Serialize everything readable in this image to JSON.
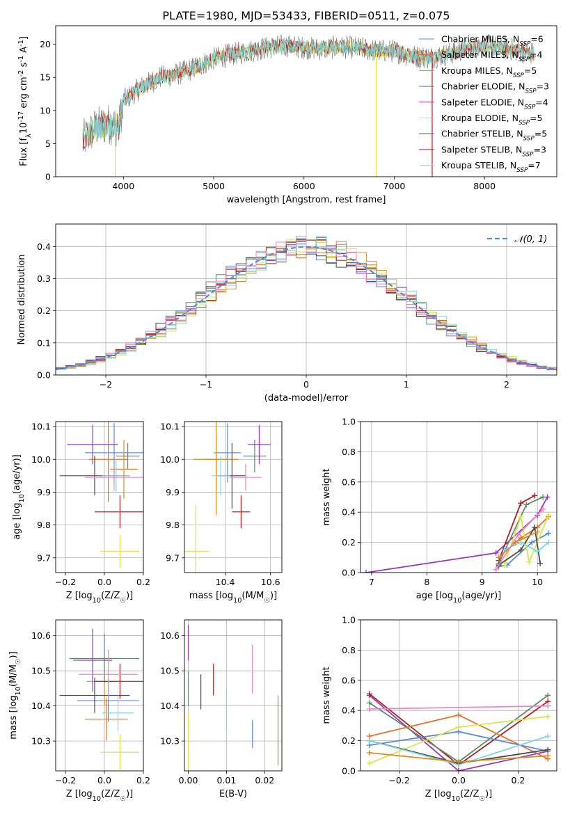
{
  "figure": {
    "title": "PLATE=1980, MJD=53433, FIBERID=0511, z=0.075"
  },
  "colors": {
    "Chabrier MILES": "#5b8bd8",
    "Salpeter MILES": "#e5712a",
    "Kroupa MILES": "#d98c1e",
    "Chabrier ELODIE": "#5e8a6a",
    "Salpeter ELODIE": "#9a35b8",
    "Kroupa ELODIE": "#d6e64a",
    "Chabrier STELIB": "#4a4a4a",
    "Salpeter STELIB": "#b21d1d",
    "Kroupa STELIB": "#7fd6dc",
    "spectrum": "#808080",
    "extra_pink": "#e688c2"
  },
  "chart_data": [
    {
      "id": "spectrum",
      "type": "line",
      "title": "PLATE=1980, MJD=53433, FIBERID=0511, z=0.075",
      "xlabel": "wavelength [Angstrom, rest frame]",
      "ylabel": "Flux [f$_\\lambda$10$^{-17}$ erg cm$^{-2}$ s$^{-1}$ A$^{-1}$]",
      "xlim": [
        3250,
        8800
      ],
      "ylim": [
        0,
        22.8
      ],
      "xticks": [
        4000,
        5000,
        6000,
        7000,
        8000
      ],
      "yticks": [
        0,
        5,
        10,
        15,
        20
      ],
      "legend": [
        {
          "label": "Chabrier MILES, N",
          "sub": "SSP",
          "value": "=6",
          "color": "#5b8bd8"
        },
        {
          "label": "Salpeter MILES, N",
          "sub": "SSP",
          "value": "=4",
          "color": "#e5712a"
        },
        {
          "label": "Kroupa MILES, N",
          "sub": "SSP",
          "value": "=5",
          "color": "#d98c1e"
        },
        {
          "label": "Chabrier ELODIE, N",
          "sub": "SSP",
          "value": "=3",
          "color": "#5e8a6a"
        },
        {
          "label": "Salpeter ELODIE, N",
          "sub": "SSP",
          "value": "=4",
          "color": "#9a35b8"
        },
        {
          "label": "Kroupa ELODIE, N",
          "sub": "SSP",
          "value": "=5",
          "color": "#d6e64a"
        },
        {
          "label": "Chabrier STELIB, N",
          "sub": "SSP",
          "value": "=5",
          "color": "#4a4a4a"
        },
        {
          "label": "Salpeter STELIB, N",
          "sub": "SSP",
          "value": "=3",
          "color": "#b21d1d"
        },
        {
          "label": "Kroupa STELIB, N",
          "sub": "SSP",
          "value": "=7",
          "color": "#7fd6dc"
        }
      ],
      "legend_placement": "right",
      "envelope": {
        "x": [
          3550,
          3700,
          3850,
          3950,
          4000,
          4200,
          4400,
          4600,
          4800,
          5000,
          5200,
          5400,
          5600,
          5800,
          6000,
          6200,
          6400,
          6600,
          6800,
          7000,
          7200,
          7400,
          7600,
          7800,
          8000,
          8200,
          8400,
          8550
        ],
        "y": [
          5.5,
          7.5,
          8.0,
          7.5,
          11.5,
          13.5,
          15.0,
          15.5,
          16.5,
          17.8,
          18.5,
          19.0,
          19.5,
          19.8,
          19.5,
          19.3,
          19.6,
          19.4,
          19.0,
          19.0,
          18.2,
          18.0,
          18.5,
          19.4,
          19.8,
          19.5,
          19.0,
          18.5
        ]
      },
      "dips": [
        {
          "x": 3910,
          "to": 0.0,
          "color": "#d6e64a"
        },
        {
          "x": 6800,
          "to": 0.0,
          "color": "#d6e64a"
        },
        {
          "x": 7420,
          "to": 0.0,
          "color": "#b21d1d"
        }
      ]
    },
    {
      "id": "residual_hist",
      "type": "line",
      "xlabel": "(data-model)/error",
      "ylabel": "Normed distribution",
      "xlim": [
        -2.5,
        2.5
      ],
      "ylim": [
        0,
        0.47
      ],
      "xticks": [
        -2,
        -1,
        0,
        1,
        2
      ],
      "yticks": [
        0.0,
        0.1,
        0.2,
        0.3,
        0.4
      ],
      "grid": true,
      "legend": [
        {
          "label": "𝒩(0, 1)",
          "style": "dashed",
          "color": "#5b8bd8"
        }
      ],
      "legend_placement": "top-right",
      "bin_width": 0.1
    },
    {
      "id": "age_vs_Z",
      "type": "scatter",
      "xlabel": "Z [log$_{10}$(Z/Z$_\\odot$)]",
      "ylabel": "age  [log$_{10}$(age/yr)]",
      "xlim": [
        -0.25,
        0.2
      ],
      "ylim": [
        9.655,
        10.115
      ],
      "xticks": [
        -0.2,
        0.0,
        0.2
      ],
      "yticks": [
        9.7,
        9.8,
        9.9,
        10.0,
        10.1
      ],
      "grid": true,
      "points": [
        {
          "series": "Chabrier MILES",
          "x": 0.05,
          "xerr": 0.15,
          "y": 10.02,
          "yerr": 0.09
        },
        {
          "series": "Salpeter MILES",
          "x": 0.02,
          "xerr": 0.1,
          "y": 10.0,
          "yerr": 0.13
        },
        {
          "series": "Kroupa MILES",
          "x": 0.1,
          "xerr": 0.07,
          "y": 9.97,
          "yerr": 0.09
        },
        {
          "series": "Chabrier ELODIE",
          "x": 0.12,
          "xerr": 0.06,
          "y": 10.01,
          "yerr": 0.04
        },
        {
          "series": "Salpeter ELODIE",
          "x": -0.06,
          "xerr": 0.13,
          "y": 10.045,
          "yerr": 0.06
        },
        {
          "series": "Kroupa ELODIE",
          "x": 0.08,
          "xerr": 0.1,
          "y": 9.72,
          "yerr": 0.05
        },
        {
          "series": "Chabrier STELIB",
          "x": -0.05,
          "xerr": 0.18,
          "y": 9.95,
          "yerr": 0.06
        },
        {
          "series": "Salpeter STELIB",
          "x": 0.08,
          "xerr": 0.13,
          "y": 9.84,
          "yerr": 0.05
        },
        {
          "series": "Kroupa STELIB",
          "x": 0.06,
          "xerr": 0.07,
          "y": 9.95,
          "yerr": 0.05
        },
        {
          "series": "extra_pink",
          "x": 0.05,
          "xerr": 0.15,
          "y": 9.945,
          "yerr": 0.04
        }
      ]
    },
    {
      "id": "age_vs_mass",
      "type": "scatter",
      "xlabel": "mass [log$_{10}$(M/M$_\\odot$)]",
      "ylabel": "",
      "xlim": [
        10.22,
        10.65
      ],
      "ylim": [
        9.655,
        10.115
      ],
      "xticks": [
        10.4,
        10.6
      ],
      "yticks": [
        9.7,
        9.8,
        9.9,
        10.0,
        10.1
      ],
      "grid": true,
      "points": [
        {
          "series": "Chabrier MILES",
          "x": 10.41,
          "xerr": 0.06,
          "y": 10.02,
          "yerr": 0.09
        },
        {
          "series": "Salpeter MILES",
          "x": 10.36,
          "xerr": 0.05,
          "y": 10.0,
          "yerr": 0.07
        },
        {
          "series": "Kroupa MILES",
          "x": 10.36,
          "xerr": 0.1,
          "y": 10.0,
          "yerr": 0.17
        },
        {
          "series": "Chabrier ELODIE",
          "x": 10.53,
          "xerr": 0.05,
          "y": 10.01,
          "yerr": 0.05
        },
        {
          "series": "Salpeter ELODIE",
          "x": 10.55,
          "xerr": 0.05,
          "y": 10.045,
          "yerr": 0.06
        },
        {
          "series": "Kroupa ELODIE",
          "x": 10.27,
          "xerr": 0.06,
          "y": 9.72,
          "yerr": 0.14
        },
        {
          "series": "Chabrier STELIB",
          "x": 10.43,
          "xerr": 0.06,
          "y": 9.95,
          "yerr": 0.1
        },
        {
          "series": "Salpeter STELIB",
          "x": 10.47,
          "xerr": 0.04,
          "y": 9.84,
          "yerr": 0.05
        },
        {
          "series": "Kroupa STELIB",
          "x": 10.38,
          "xerr": 0.04,
          "y": 9.95,
          "yerr": 0.06
        },
        {
          "series": "extra_pink",
          "x": 10.49,
          "xerr": 0.07,
          "y": 9.945,
          "yerr": 0.04
        }
      ]
    },
    {
      "id": "massweight_vs_age",
      "type": "line",
      "xlabel": "age  [log$_{10}$(age/yr)]",
      "ylabel": "mass weight",
      "xlim": [
        6.8,
        10.35
      ],
      "ylim": [
        0,
        1.0
      ],
      "xticks": [
        7,
        8,
        9,
        10
      ],
      "yticks": [
        0.0,
        0.2,
        0.4,
        0.6,
        0.8,
        1.0
      ],
      "grid": true,
      "series": [
        {
          "name": "Salpeter ELODIE",
          "x": [
            6.9,
            9.25,
            10.0,
            10.18
          ],
          "y": [
            0.0,
            0.13,
            0.38,
            0.5
          ]
        },
        {
          "name": "Salpeter STELIB",
          "x": [
            9.3,
            9.7,
            9.95
          ],
          "y": [
            0.08,
            0.46,
            0.51
          ]
        },
        {
          "name": "Chabrier ELODIE",
          "x": [
            9.3,
            9.8,
            10.1
          ],
          "y": [
            0.06,
            0.45,
            0.5
          ]
        },
        {
          "name": "Salpeter MILES",
          "x": [
            9.3,
            9.7,
            10.0,
            10.2
          ],
          "y": [
            0.1,
            0.23,
            0.3,
            0.37
          ]
        },
        {
          "name": "Chabrier MILES",
          "x": [
            9.3,
            9.45,
            9.9,
            10.2
          ],
          "y": [
            0.04,
            0.05,
            0.2,
            0.26
          ]
        },
        {
          "name": "Kroupa ELODIE",
          "x": [
            9.4,
            9.7,
            9.85,
            10.2
          ],
          "y": [
            0.05,
            0.37,
            0.07,
            0.38
          ]
        },
        {
          "name": "Chabrier STELIB",
          "x": [
            9.3,
            9.7,
            9.95,
            10.05
          ],
          "y": [
            0.05,
            0.15,
            0.3,
            0.06
          ]
        },
        {
          "name": "Kroupa STELIB",
          "x": [
            9.4,
            9.7,
            10.0,
            10.2
          ],
          "y": [
            0.15,
            0.2,
            0.14,
            0.2
          ]
        },
        {
          "name": "Kroupa MILES",
          "x": [
            9.3,
            9.6,
            10.0
          ],
          "y": [
            0.1,
            0.2,
            0.27
          ]
        },
        {
          "name": "extra_pink",
          "x": [
            9.25,
            9.65,
            10.1
          ],
          "y": [
            0.02,
            0.25,
            0.42
          ]
        }
      ]
    },
    {
      "id": "mass_vs_Z",
      "type": "scatter",
      "xlabel": "Z [log$_{10}$(Z/Z$_\\odot$)]",
      "ylabel": "mass [log$_{10}$(M/M$_\\odot$)]",
      "xlim": [
        -0.25,
        0.2
      ],
      "ylim": [
        10.215,
        10.645
      ],
      "xticks": [
        -0.2,
        0.0,
        0.2
      ],
      "yticks": [
        10.3,
        10.4,
        10.5,
        10.6
      ],
      "grid": true,
      "points": [
        {
          "series": "Chabrier MILES",
          "x": 0.02,
          "xerr": 0.16,
          "y": 10.415,
          "yerr": 0.06
        },
        {
          "series": "Salpeter MILES",
          "x": 0.01,
          "xerr": 0.11,
          "y": 10.362,
          "yerr": 0.06
        },
        {
          "series": "Kroupa MILES",
          "x": 0.0,
          "xerr": 0.09,
          "y": 10.47,
          "yerr": 0.07
        },
        {
          "series": "Chabrier ELODIE",
          "x": 0.0,
          "xerr": 0.18,
          "y": 10.535,
          "yerr": 0.07
        },
        {
          "series": "Salpeter ELODIE",
          "x": -0.06,
          "xerr": 0.1,
          "y": 10.53,
          "yerr": 0.09
        },
        {
          "series": "Kroupa ELODIE",
          "x": 0.08,
          "xerr": 0.1,
          "y": 10.268,
          "yerr": 0.05
        },
        {
          "series": "Chabrier STELIB",
          "x": -0.05,
          "xerr": 0.18,
          "y": 10.43,
          "yerr": 0.05
        },
        {
          "series": "Salpeter STELIB",
          "x": 0.08,
          "xerr": 0.13,
          "y": 10.47,
          "yerr": 0.05
        },
        {
          "series": "Kroupa STELIB",
          "x": 0.07,
          "xerr": 0.08,
          "y": 10.38,
          "yerr": 0.05
        },
        {
          "series": "extra_pink",
          "x": 0.02,
          "xerr": 0.15,
          "y": 10.49,
          "yerr": 0.07
        }
      ]
    },
    {
      "id": "mass_vs_ebv",
      "type": "scatter",
      "xlabel": "E(B-V)",
      "ylabel": "",
      "xlim": [
        -0.001,
        0.0245
      ],
      "ylim": [
        10.215,
        10.645
      ],
      "xticks": [
        0.0,
        0.01,
        0.02
      ],
      "yticks": [
        10.3,
        10.4,
        10.5,
        10.6
      ],
      "grid": true,
      "points": [
        {
          "series": "Chabrier MILES",
          "x": 0.0168,
          "y": 10.32,
          "yerr": 0.04
        },
        {
          "series": "Salpeter MILES",
          "x": 0.0235,
          "y": 10.33,
          "yerr": 0.1
        },
        {
          "series": "Kroupa ELODIE",
          "x": 0.0,
          "y": 10.3,
          "yerr": 0.08
        },
        {
          "series": "Salpeter ELODIE",
          "x": 0.0,
          "y": 10.58,
          "yerr": 0.05
        },
        {
          "series": "Chabrier ELODIE",
          "x": 0.0,
          "y": 10.45,
          "yerr": 0.05
        },
        {
          "series": "Chabrier STELIB",
          "x": 0.0033,
          "y": 10.44,
          "yerr": 0.05
        },
        {
          "series": "Salpeter STELIB",
          "x": 0.0066,
          "y": 10.475,
          "yerr": 0.045
        },
        {
          "series": "Kroupa STELIB",
          "x": 0.01,
          "y": 10.39,
          "yerr": 0.06
        },
        {
          "series": "extra_pink",
          "x": 0.0168,
          "y": 10.505,
          "yerr": 0.07
        }
      ]
    },
    {
      "id": "massweight_vs_Z",
      "type": "line",
      "xlabel": "Z [log$_{10}$(Z/Z$_\\odot$)]",
      "ylabel": "mass weight",
      "xlim": [
        -0.33,
        0.33
      ],
      "ylim": [
        0,
        1.0
      ],
      "xticks": [
        -0.2,
        0.0,
        0.2
      ],
      "yticks": [
        0.0,
        0.2,
        0.4,
        0.6,
        0.8,
        1.0
      ],
      "grid": true,
      "series": [
        {
          "name": "Salpeter ELODIE",
          "x": [
            -0.3,
            0.0,
            0.3
          ],
          "y": [
            0.5,
            0.0,
            0.13
          ]
        },
        {
          "name": "Salpeter STELIB",
          "x": [
            -0.3,
            0.0,
            0.3
          ],
          "y": [
            0.51,
            0.04,
            0.46
          ]
        },
        {
          "name": "Chabrier ELODIE",
          "x": [
            -0.3,
            0.0,
            0.3
          ],
          "y": [
            0.45,
            0.06,
            0.5
          ]
        },
        {
          "name": "Salpeter MILES",
          "x": [
            -0.3,
            0.0,
            0.3
          ],
          "y": [
            0.23,
            0.37,
            0.08
          ]
        },
        {
          "name": "Chabrier MILES",
          "x": [
            -0.3,
            0.0,
            0.3
          ],
          "y": [
            0.17,
            0.26,
            0.13
          ]
        },
        {
          "name": "Kroupa ELODIE",
          "x": [
            -0.3,
            0.0,
            0.3
          ],
          "y": [
            0.05,
            0.29,
            0.36
          ]
        },
        {
          "name": "Chabrier STELIB",
          "x": [
            -0.3,
            0.0,
            0.3
          ],
          "y": [
            0.2,
            0.05,
            0.14
          ]
        },
        {
          "name": "Kroupa STELIB",
          "x": [
            -0.3,
            0.0,
            0.3
          ],
          "y": [
            0.2,
            0.04,
            0.23
          ]
        },
        {
          "name": "extra_pink",
          "x": [
            -0.3,
            0.3
          ],
          "y": [
            0.41,
            0.43
          ]
        },
        {
          "name": "Kroupa MILES",
          "x": [
            -0.3,
            0.0,
            0.3
          ],
          "y": [
            0.12,
            0.06,
            0.1
          ]
        }
      ]
    }
  ]
}
